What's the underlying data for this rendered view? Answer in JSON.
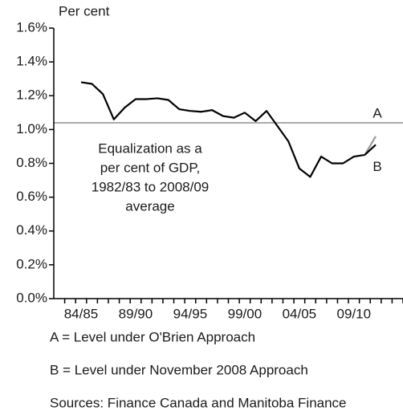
{
  "chart_data": {
    "type": "line",
    "y_label": "Per cent",
    "categories": [
      null,
      null,
      "84/85",
      null,
      null,
      null,
      null,
      "89/90",
      null,
      null,
      null,
      null,
      "94/95",
      null,
      null,
      null,
      null,
      "99/00",
      null,
      null,
      null,
      null,
      "04/05",
      null,
      null,
      null,
      null,
      "09/10",
      null,
      null,
      null,
      null
    ],
    "series": [
      {
        "color": "#000000",
        "values": [
          null,
          null,
          1.28,
          1.27,
          1.21,
          1.06,
          1.13,
          1.18,
          1.18,
          1.185,
          1.175,
          1.12,
          1.11,
          1.105,
          1.115,
          1.08,
          1.07,
          1.1,
          1.05,
          1.11,
          1.02,
          0.93,
          0.77,
          0.72,
          0.84,
          0.8,
          0.8,
          0.84,
          0.85,
          null,
          null,
          null
        ]
      },
      {
        "name": "A",
        "color": "#999999",
        "values": [
          null,
          null,
          null,
          null,
          null,
          null,
          null,
          null,
          null,
          null,
          null,
          null,
          null,
          null,
          null,
          null,
          null,
          null,
          null,
          null,
          null,
          null,
          null,
          null,
          null,
          null,
          null,
          null,
          0.85,
          0.96,
          null,
          null
        ]
      },
      {
        "name": "B",
        "color": "#000000",
        "values": [
          null,
          null,
          null,
          null,
          null,
          null,
          null,
          null,
          null,
          null,
          null,
          null,
          null,
          null,
          null,
          null,
          null,
          null,
          null,
          null,
          null,
          null,
          null,
          null,
          null,
          null,
          null,
          null,
          0.85,
          0.91,
          null,
          null
        ]
      }
    ],
    "reference_line": {
      "value": 1.04,
      "color": "#aaaaaa"
    },
    "annotation": [
      "Equalization as a",
      "per cent of GDP,",
      "1982/83 to 2008/09",
      "average"
    ],
    "ylim": [
      0,
      1.6
    ],
    "yticks": [
      {
        "value": 0,
        "label": "0.0%"
      },
      {
        "value": 0.2,
        "label": "0.2%"
      },
      {
        "value": 0.4,
        "label": "0.4%"
      },
      {
        "value": 0.6,
        "label": "0.6%"
      },
      {
        "value": 0.8,
        "label": "0.8%"
      },
      {
        "value": 1.0,
        "label": "1.0%"
      },
      {
        "value": 1.2,
        "label": "1.2%"
      },
      {
        "value": 1.4,
        "label": "1.4%"
      },
      {
        "value": 1.6,
        "label": "1.6%"
      }
    ],
    "notes": [
      "A = Level under O'Brien Approach",
      "B = Level under November 2008 Approach",
      "Sources: Finance Canada and Manitoba Finance"
    ]
  }
}
